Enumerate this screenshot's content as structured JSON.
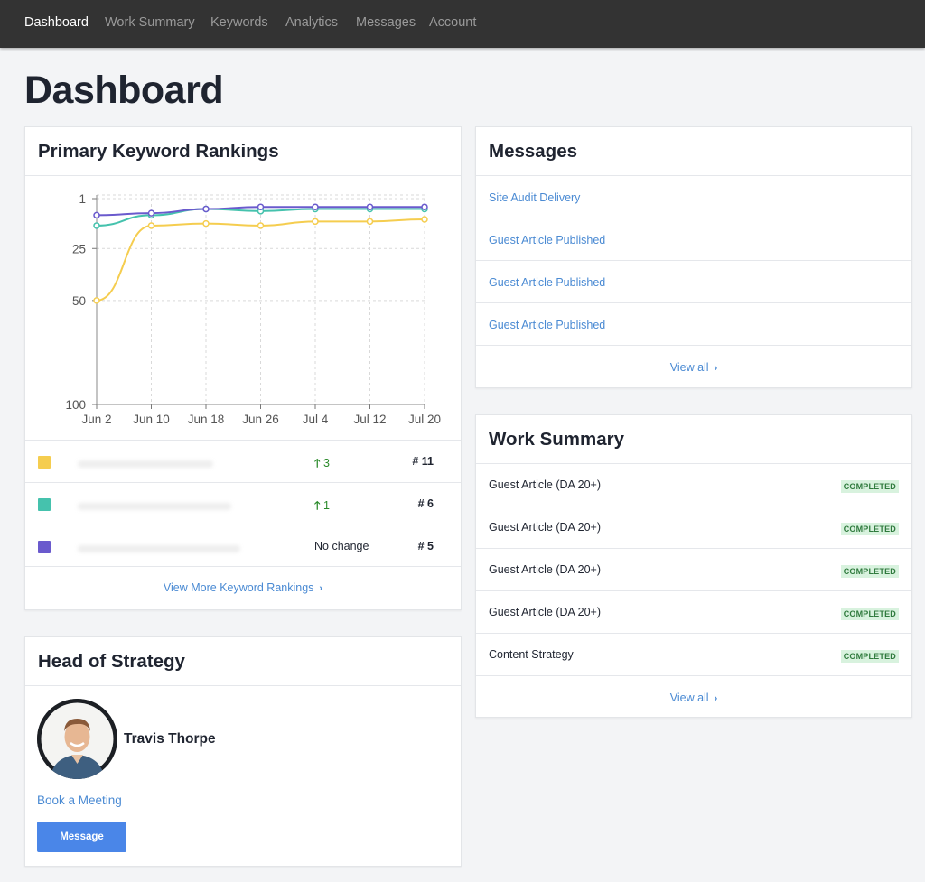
{
  "nav": {
    "items": [
      {
        "label": "Dashboard",
        "active": true
      },
      {
        "label": "Work Summary",
        "active": false
      },
      {
        "label": "Keywords",
        "active": false
      },
      {
        "label": "Analytics",
        "active": false
      },
      {
        "label": "Messages",
        "active": false
      },
      {
        "label": "Account",
        "active": false
      }
    ]
  },
  "page": {
    "title": "Dashboard"
  },
  "keywords": {
    "title": "Primary Keyword Rankings",
    "rows": [
      {
        "color": "#f5cd4f",
        "change": "3",
        "direction": "up",
        "rank": "# 11"
      },
      {
        "color": "#45c2ad",
        "change": "1",
        "direction": "up",
        "rank": "# 6"
      },
      {
        "color": "#6a5acd",
        "change": "No change",
        "direction": "none",
        "rank": "# 5"
      }
    ],
    "up_arrow": "🡑",
    "view_more": "View More Keyword Rankings",
    "chevron": "›"
  },
  "chart_data": {
    "type": "line",
    "x": [
      "Jun 2",
      "Jun 10",
      "Jun 18",
      "Jun 26",
      "Jul 4",
      "Jul 12",
      "Jul 20"
    ],
    "y_ticks": [
      1,
      25,
      50,
      100
    ],
    "y_inverted": true,
    "ylim": [
      1,
      100
    ],
    "grid": true,
    "series": [
      {
        "color": "#f5cd4f",
        "values": [
          50,
          14,
          13,
          14,
          12,
          12,
          11
        ]
      },
      {
        "color": "#45c2ad",
        "values": [
          14,
          9,
          6,
          7,
          6,
          6,
          6
        ]
      },
      {
        "color": "#6a5acd",
        "values": [
          9,
          8,
          6,
          5,
          5,
          5,
          5
        ]
      }
    ]
  },
  "strategy": {
    "title": "Head of Strategy",
    "name": "Travis Thorpe",
    "book": "Book a Meeting",
    "button": "Message"
  },
  "messages": {
    "title": "Messages",
    "items": [
      "Site Audit Delivery",
      "Guest Article Published",
      "Guest Article Published",
      "Guest Article Published"
    ],
    "view_all": "View all",
    "chevron": "›"
  },
  "work": {
    "title": "Work Summary",
    "items": [
      {
        "label": "Guest Article (DA 20+)",
        "status": "COMPLETED"
      },
      {
        "label": "Guest Article (DA 20+)",
        "status": "COMPLETED"
      },
      {
        "label": "Guest Article (DA 20+)",
        "status": "COMPLETED"
      },
      {
        "label": "Guest Article (DA 20+)",
        "status": "COMPLETED"
      },
      {
        "label": "Content Strategy",
        "status": "COMPLETED"
      }
    ],
    "view_all": "View all",
    "chevron": "›"
  }
}
